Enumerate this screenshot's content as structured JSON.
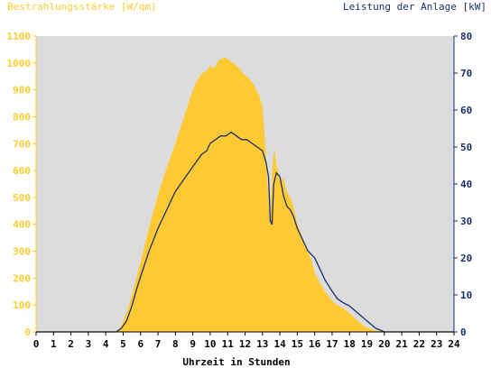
{
  "colors": {
    "background": "#ffffff",
    "plot_bg": "#dcdcdc",
    "left_axis": "#ffcc33",
    "right_axis": "#1b2f6b",
    "area_fill": "#ffc933",
    "line": "#1b2f6b",
    "x_labels": "#000000"
  },
  "chart_data": {
    "type": "area",
    "ylabel_left": "Bestrahlungsstärke [W/qm]",
    "ylabel_right": "Leistung der Anlage [kW]",
    "xlabel": "Uhrzeit in Stunden",
    "xlim": [
      0,
      24
    ],
    "ylim_left": [
      0,
      1100
    ],
    "ylim_right": [
      0,
      80
    ],
    "x_ticks": [
      "0",
      "1",
      "2",
      "3",
      "4",
      "5",
      "6",
      "7",
      "8",
      "9",
      "10",
      "11",
      "12",
      "13",
      "14",
      "15",
      "16",
      "17",
      "18",
      "19",
      "20",
      "21",
      "22",
      "23",
      "24"
    ],
    "y_ticks_left": [
      "0",
      "100",
      "200",
      "300",
      "400",
      "500",
      "600",
      "700",
      "800",
      "900",
      "1000",
      "1100"
    ],
    "y_ticks_right": [
      "0",
      "10",
      "20",
      "30",
      "40",
      "50",
      "60",
      "70",
      "80"
    ],
    "grid": false,
    "series": [
      {
        "name": "Bestrahlungsstärke [W/qm]",
        "axis": "left",
        "style": "area",
        "x": [
          0,
          4.5,
          4.8,
          5.0,
          5.3,
          5.6,
          6.0,
          6.5,
          7.0,
          7.5,
          8.0,
          8.3,
          8.6,
          8.9,
          9.2,
          9.5,
          9.8,
          10.0,
          10.2,
          10.5,
          10.8,
          11.0,
          11.3,
          11.6,
          11.9,
          12.2,
          12.5,
          12.8,
          13.0,
          13.2,
          13.4,
          13.45,
          13.5,
          13.6,
          13.7,
          13.8,
          13.9,
          14.0,
          14.2,
          14.4,
          14.6,
          14.8,
          15.0,
          15.2,
          15.4,
          15.6,
          15.8,
          16.0,
          16.3,
          16.6,
          17.0,
          17.3,
          17.6,
          18.0,
          18.5,
          19.0,
          19.5,
          20.0,
          20.3,
          20.6,
          24
        ],
        "y": [
          0,
          0,
          10,
          40,
          90,
          160,
          260,
          390,
          510,
          610,
          700,
          760,
          820,
          880,
          930,
          960,
          970,
          990,
          980,
          1010,
          1020,
          1015,
          1000,
          985,
          960,
          945,
          920,
          880,
          840,
          660,
          430,
          420,
          520,
          640,
          680,
          620,
          600,
          560,
          570,
          520,
          500,
          460,
          400,
          370,
          330,
          300,
          270,
          220,
          180,
          150,
          115,
          100,
          90,
          70,
          40,
          15,
          5,
          0,
          0,
          0,
          0
        ]
      },
      {
        "name": "Leistung der Anlage [kW]",
        "axis": "right",
        "style": "line",
        "x": [
          0,
          4.6,
          4.9,
          5.2,
          5.5,
          5.8,
          6.0,
          6.5,
          7.0,
          7.5,
          8.0,
          8.3,
          8.6,
          8.9,
          9.2,
          9.5,
          9.8,
          10.0,
          10.3,
          10.6,
          10.9,
          11.2,
          11.5,
          11.8,
          12.1,
          12.4,
          12.7,
          13.0,
          13.2,
          13.35,
          13.45,
          13.55,
          13.65,
          13.8,
          14.0,
          14.2,
          14.4,
          14.6,
          14.8,
          15.0,
          15.2,
          15.4,
          15.6,
          15.8,
          16.0,
          16.3,
          16.6,
          17.0,
          17.3,
          17.6,
          18.0,
          18.5,
          19.0,
          19.5,
          20.0,
          20.3,
          20.6,
          24
        ],
        "y": [
          0,
          0,
          1,
          3,
          7,
          12,
          15,
          22,
          28,
          33,
          38,
          40,
          42,
          44,
          46,
          48,
          49,
          51,
          52,
          53,
          53,
          54,
          53,
          52,
          52,
          51,
          50,
          49,
          46,
          42,
          30,
          29,
          40,
          43,
          42,
          37,
          34,
          33,
          31,
          28,
          26,
          24,
          22,
          21,
          20,
          17,
          14,
          11,
          9,
          8,
          7,
          5,
          3,
          1,
          0,
          0,
          0,
          0
        ]
      }
    ]
  }
}
